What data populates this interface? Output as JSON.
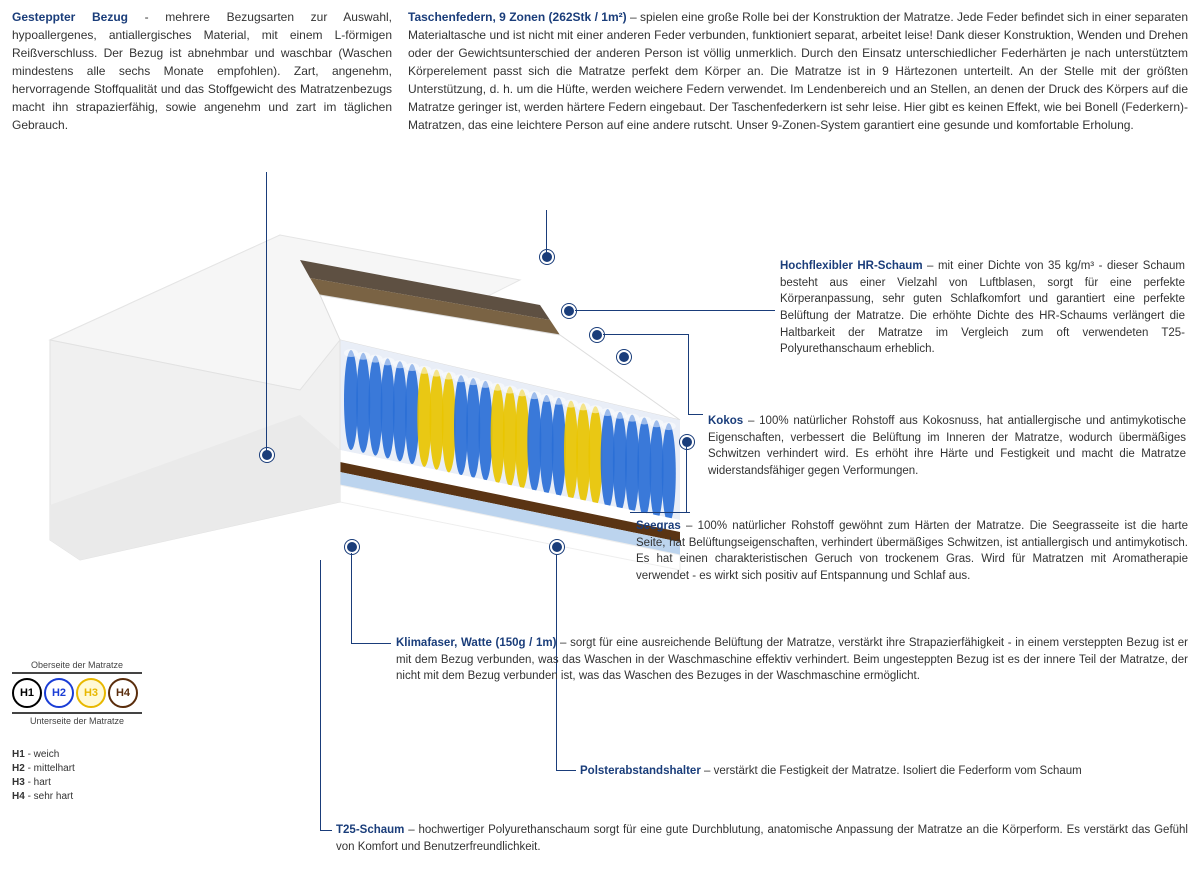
{
  "top": {
    "left": {
      "title": "Gesteppter Bezug",
      "text": " - mehrere Bezugsarten zur Auswahl, hypoallergenes, antiallergisches Material, mit einem L-förmigen Reißverschluss. Der Bezug ist abnehmbar und waschbar (Waschen mindestens alle sechs Monate empfohlen). Zart, angenehm, hervorragende Stoffqualität und das Stoffgewicht des Matratzenbezugs macht ihn strapazierfähig, sowie angenehm und zart im täglichen Gebrauch."
    },
    "right": {
      "title": "Taschenfedern, 9 Zonen (262Stk / 1m²)",
      "text": " – spielen eine große Rolle bei der Konstruktion der Matratze. Jede Feder befindet sich in einer separaten Materialtasche und ist nicht mit einer anderen Feder verbunden, funktioniert separat, arbeitet leise! Dank dieser Konstruktion, Wenden und Drehen oder der Gewichtsunterschied der anderen Person ist völlig unmerklich. Durch den Einsatz unterschiedlicher Federhärten je nach unterstütztem Körperelement passt sich die Matratze perfekt dem Körper an. Die Matratze ist in 9 Härtezonen unterteilt. An der Stelle mit der größten Unterstützung, d. h. um die Hüfte, werden weichere Federn verwendet. Im Lendenbereich und an Stellen, an denen der Druck des Körpers auf die Matratze geringer ist, werden härtere Federn eingebaut. Der Taschenfederkern ist sehr leise. Hier gibt es keinen Effekt, wie bei Bonell (Federkern)- Matratzen, das eine leichtere Person auf eine andere rutscht. Unser 9-Zonen-System garantiert eine gesunde und komfortable Erholung."
    }
  },
  "callouts": {
    "hr_schaum": {
      "title": "Hochflexibler HR-Schaum",
      "text": " – mit einer Dichte von 35 kg/m³ - dieser Schaum besteht aus einer Vielzahl von Luftblasen, sorgt für eine perfekte Körperanpassung, sehr guten Schlafkomfort und garantiert eine perfekte Belüftung der Matratze. Die erhöhte Dichte des HR-Schaums verlängert die Haltbarkeit der Matratze im Vergleich zum oft verwendeten T25-Polyurethanschaum erheblich."
    },
    "kokos": {
      "title": "Kokos",
      "text": " – 100% natürlicher Rohstoff aus Kokosnuss, hat antiallergische und antimykotische Eigenschaften, verbessert die Belüftung im Inneren der Matratze, wodurch übermäßiges Schwitzen verhindert wird. Es erhöht ihre Härte und Festigkeit und macht die Matratze widerstandsfähiger gegen Verformungen."
    },
    "seegras": {
      "title": "Seegras",
      "text": " – 100% natürlicher Rohstoff gewöhnt zum Härten der Matratze. Die Seegrasseite ist die harte Seite, hat Belüftungseigenschaften, verhindert übermäßiges Schwitzen, ist antiallergisch und antimykotisch. Es hat einen charakteristischen Geruch von trockenem Gras. Wird für Matratzen mit Aromatherapie verwendet - es wirkt sich positiv auf Entspannung und Schlaf aus."
    },
    "klimafaser": {
      "title": "Klimafaser, Watte (150g / 1m)",
      "text": " – sorgt für eine ausreichende Belüftung der Matratze, verstärkt ihre Strapazierfähigkeit - in einem versteppten Bezug ist er mit dem Bezug verbunden, was das Waschen in der Waschmaschine effektiv verhindert. Beim ungesteppten Bezug ist es der innere Teil der Matratze, der nicht mit dem Bezug verbunden ist, was das Waschen des Bezuges in der Waschmaschine ermöglicht."
    },
    "polster": {
      "title": "Polsterabstandshalter",
      "text": " – verstärkt die Festigkeit der Matratze. Isoliert die Federform vom Schaum"
    },
    "t25": {
      "title": "T25-Schaum",
      "text": " – hochwertiger Polyurethanschaum sorgt für eine gute Durchblutung, anatomische Anpassung der Matratze an die Körperform. Es verstärkt das Gefühl von Komfort und Benutzerfreundlichkeit."
    }
  },
  "legend": {
    "top_label": "Oberseite der Matratze",
    "bottom_label": "Unterseite der Matratze",
    "items": [
      {
        "code": "H1",
        "label": "weich",
        "color": "#000000"
      },
      {
        "code": "H2",
        "label": "mittelhart",
        "color": "#1a3dd6"
      },
      {
        "code": "H3",
        "label": "hart",
        "color": "#e8b800"
      },
      {
        "code": "H4",
        "label": "sehr hart",
        "color": "#5a2d0c"
      }
    ]
  },
  "mattress_colors": {
    "cover": "#f3f3f3",
    "cover_side": "#e8e8e8",
    "hr_layer": "#584838",
    "kokos": "#6b5334",
    "polster": "#ffffff",
    "spring_blue": "#2a6fd6",
    "spring_yellow": "#e8c400",
    "seegras": "#4a3a28",
    "t25": "#bcd4ee",
    "accent": "#1a3d7a"
  }
}
